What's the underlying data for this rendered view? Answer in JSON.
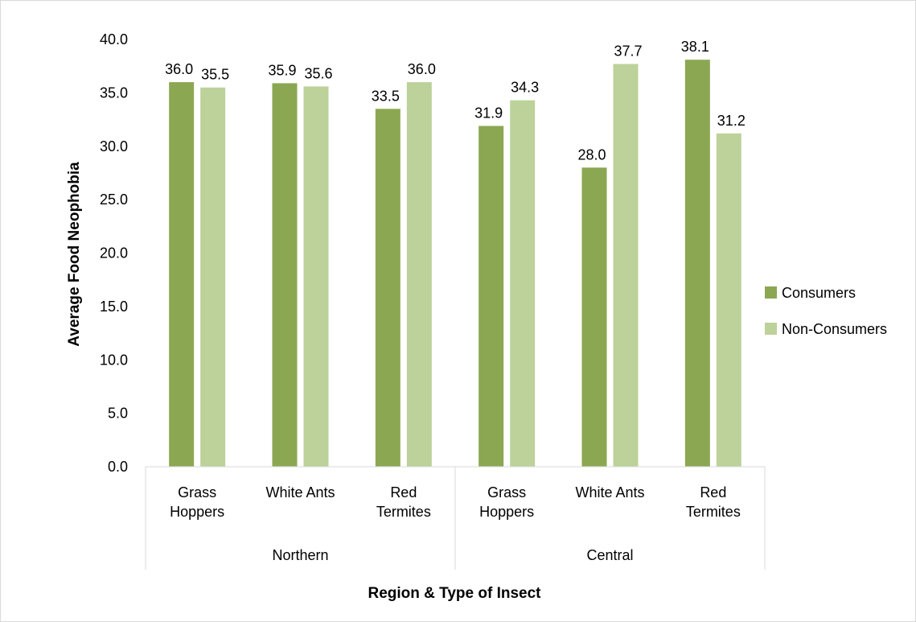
{
  "chart_data": {
    "type": "bar",
    "xlabel": "Region & Type of Insect",
    "ylabel": "Average Food Neophobia",
    "ylim": [
      0,
      40
    ],
    "yticks": [
      "0.0",
      "5.0",
      "10.0",
      "15.0",
      "20.0",
      "25.0",
      "30.0",
      "35.0",
      "40.0"
    ],
    "grid": false,
    "legend_position": "right",
    "groups": [
      {
        "name": "Northern",
        "categories": [
          "Grass\nHoppers",
          "White Ants",
          "Red\nTermites"
        ]
      },
      {
        "name": "Central",
        "categories": [
          "Grass\nHoppers",
          "White Ants",
          "Red\nTermites"
        ]
      }
    ],
    "series": [
      {
        "name": "Consumers",
        "color": "#8ba752",
        "values": [
          36.0,
          35.9,
          33.5,
          31.9,
          28.0,
          38.1
        ],
        "labels": [
          "36.0",
          "35.9",
          "33.5",
          "31.9",
          "28.0",
          "38.1"
        ]
      },
      {
        "name": "Non-Consumers",
        "color": "#bcd29a",
        "values": [
          35.5,
          35.6,
          36.0,
          34.3,
          37.7,
          31.2
        ],
        "labels": [
          "35.5",
          "35.6",
          "36.0",
          "34.3",
          "37.7",
          "31.2"
        ]
      }
    ]
  }
}
